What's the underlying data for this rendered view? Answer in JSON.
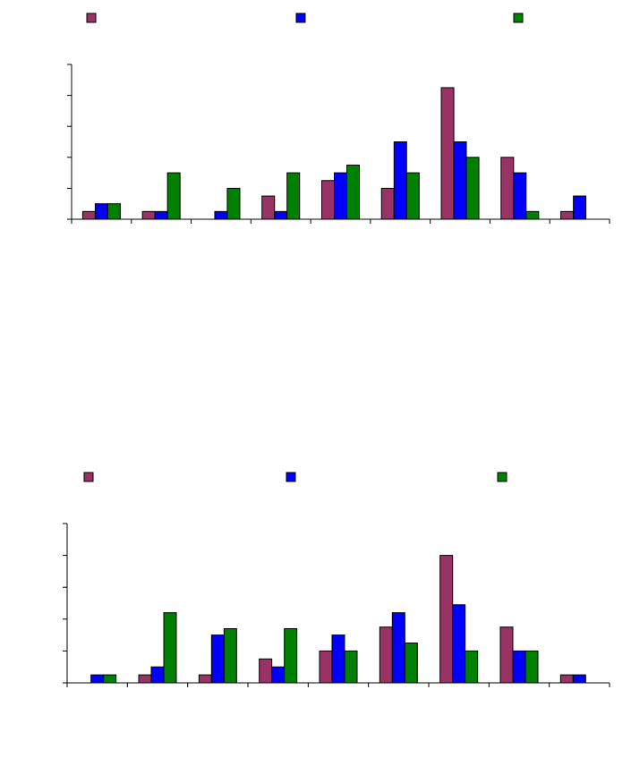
{
  "chart_data": [
    {
      "type": "bar",
      "title": "",
      "xlabel": "",
      "ylabel": "",
      "categories": [
        "",
        "",
        "",
        "",
        "",
        "",
        "",
        "",
        ""
      ],
      "ylim": [
        0,
        10
      ],
      "grid": false,
      "legend": "top",
      "series": [
        {
          "name": "",
          "color": "#993366",
          "values": [
            0.5,
            0.5,
            0,
            1.5,
            2.5,
            2,
            8.5,
            4,
            0.5
          ]
        },
        {
          "name": "",
          "color": "#0000ff",
          "values": [
            1,
            0.5,
            0.5,
            0.5,
            3,
            5,
            5,
            3,
            1.5
          ]
        },
        {
          "name": "",
          "color": "#008000",
          "values": [
            1,
            3,
            2,
            3,
            3.5,
            3,
            4,
            0.5,
            0
          ]
        }
      ]
    },
    {
      "type": "bar",
      "title": "",
      "xlabel": "",
      "ylabel": "",
      "categories": [
        "",
        "",
        "",
        "",
        "",
        "",
        "",
        "",
        ""
      ],
      "ylim": [
        0,
        10
      ],
      "grid": false,
      "legend": "top",
      "series": [
        {
          "name": "",
          "color": "#993366",
          "values": [
            0,
            0.5,
            0.5,
            1.5,
            2,
            3.5,
            8,
            3.5,
            0.5
          ]
        },
        {
          "name": "",
          "color": "#0000ff",
          "values": [
            0.5,
            1,
            3,
            1,
            3,
            4.4,
            4.9,
            2,
            0.5
          ]
        },
        {
          "name": "",
          "color": "#008000",
          "values": [
            0.5,
            4.4,
            3.4,
            3.4,
            2,
            2.5,
            2,
            2,
            0
          ]
        }
      ]
    }
  ]
}
